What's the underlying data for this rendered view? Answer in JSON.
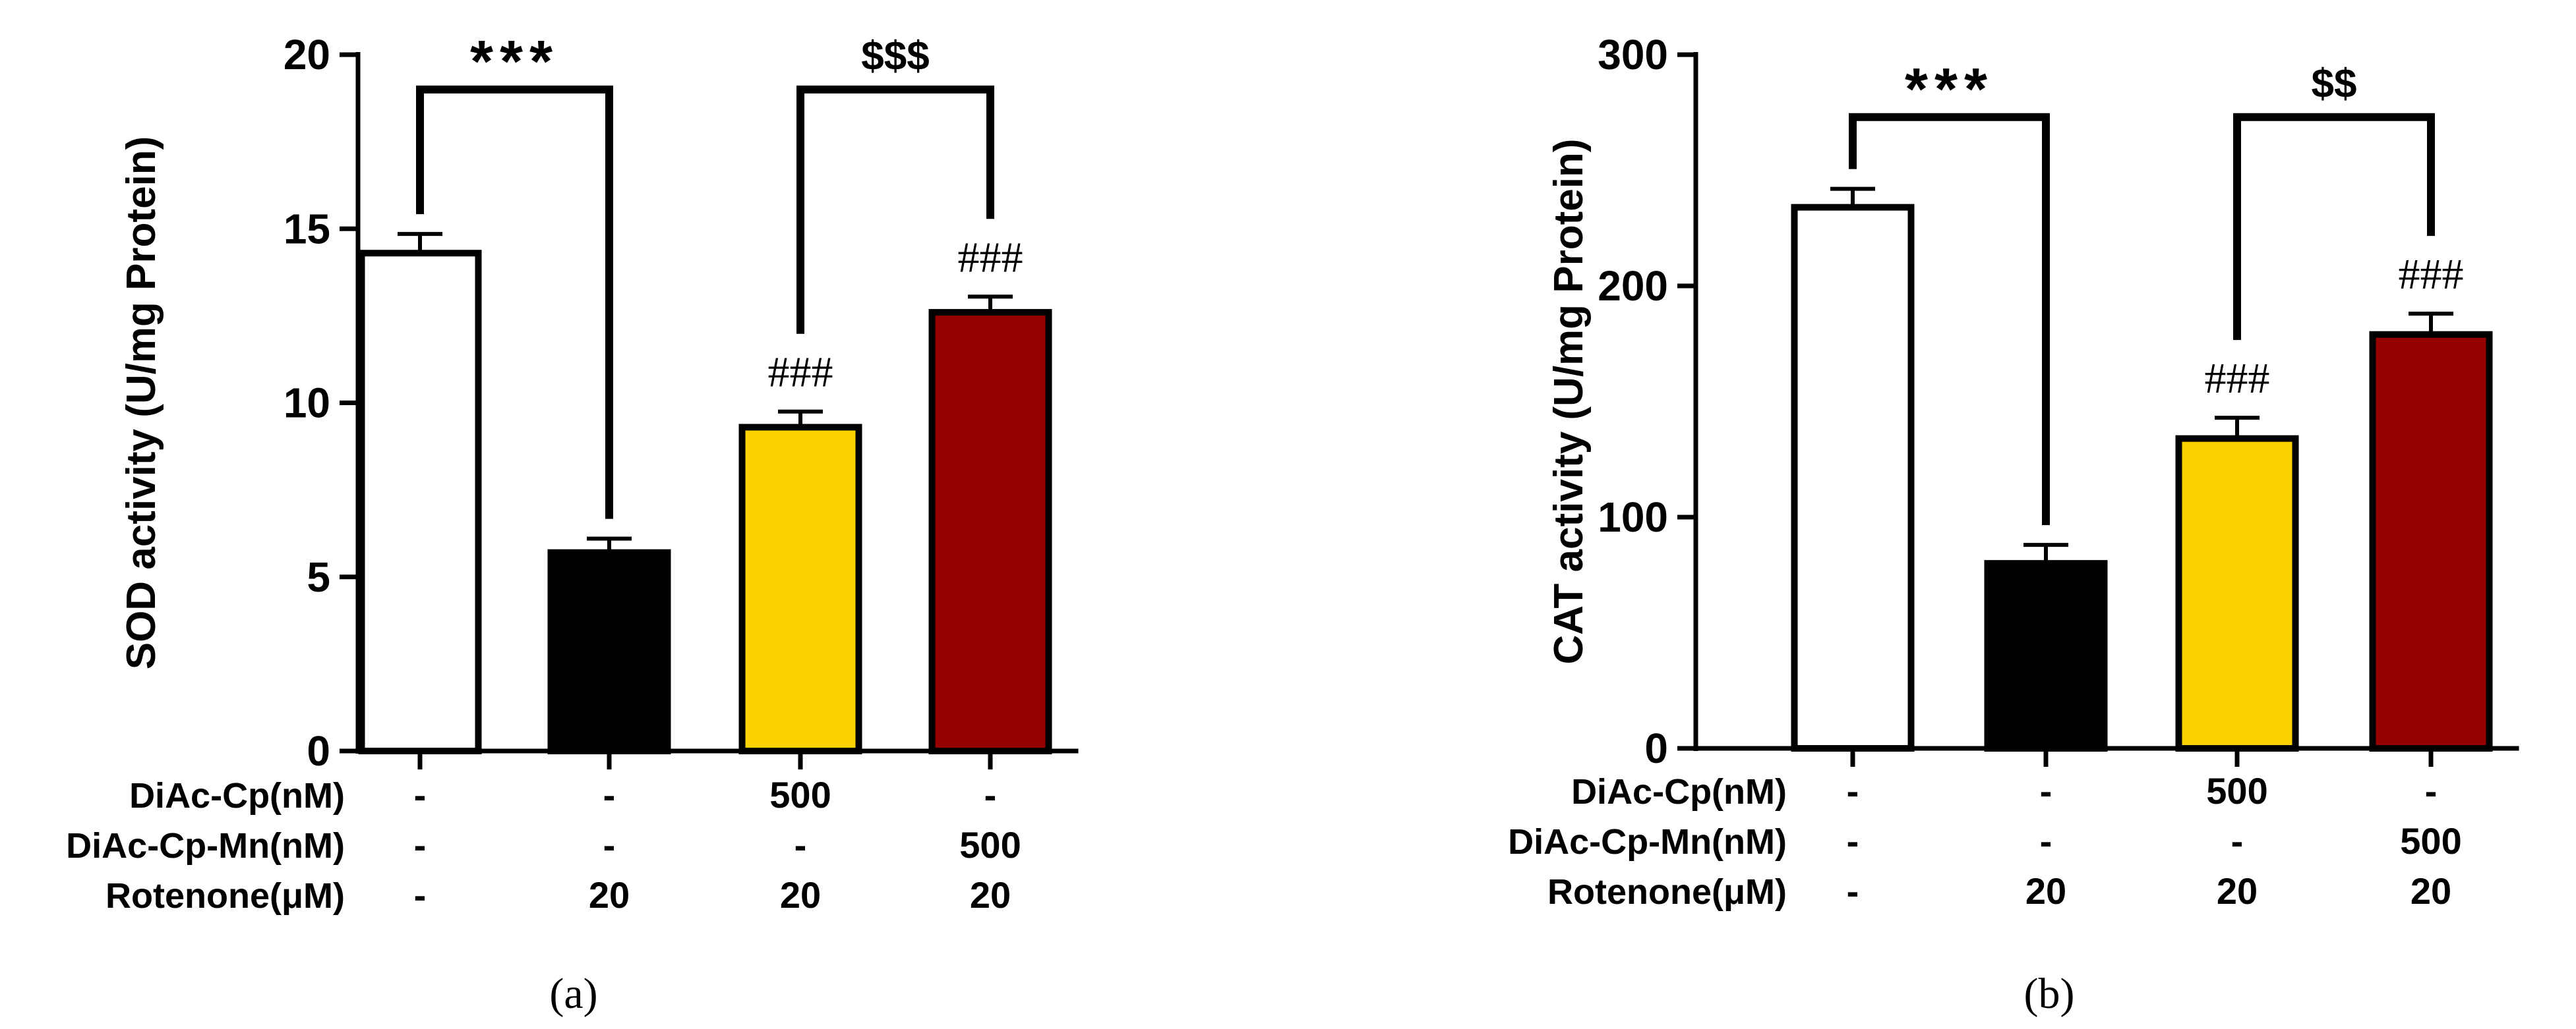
{
  "panels": [
    {
      "caption": "(a)"
    },
    {
      "caption": "(b)"
    }
  ],
  "row_labels": [
    "DiAc-Cp(nM)",
    "DiAc-Cp-Mn(nM)",
    "Rotenone(μM)"
  ],
  "chart_data": [
    {
      "type": "bar",
      "title": "",
      "xlabel": "",
      "ylabel": "SOD activity (U/mg Protein)",
      "ylim": [
        0,
        20
      ],
      "yticks": [
        0,
        5,
        10,
        15,
        20
      ],
      "values": [
        14.3,
        5.7,
        9.3,
        12.6
      ],
      "errors": [
        0.55,
        0.4,
        0.45,
        0.45
      ],
      "colors": [
        "#ffffff",
        "#000000",
        "#fed200",
        "#960000"
      ],
      "conditions": [
        [
          "-",
          "-",
          "500",
          "-"
        ],
        [
          "-",
          "-",
          "-",
          "500"
        ],
        [
          "-",
          "20",
          "20",
          "20"
        ]
      ],
      "bar_labels": [
        "",
        "",
        "###",
        "###"
      ],
      "comparisons": [
        {
          "from": 0,
          "to": 1,
          "label": "***",
          "level": 19
        },
        {
          "from": 2,
          "to": 3,
          "label": "$$$",
          "level": 19
        }
      ]
    },
    {
      "type": "bar",
      "title": "",
      "xlabel": "",
      "ylabel": "CAT activity (U/mg Protein)",
      "ylim": [
        0,
        300
      ],
      "yticks": [
        0,
        100,
        200,
        300
      ],
      "values": [
        234,
        80,
        134,
        179
      ],
      "errors": [
        8,
        8,
        9,
        9
      ],
      "colors": [
        "#ffffff",
        "#000000",
        "#fed200",
        "#960000"
      ],
      "conditions": [
        [
          "-",
          "-",
          "500",
          "-"
        ],
        [
          "-",
          "-",
          "-",
          "500"
        ],
        [
          "-",
          "20",
          "20",
          "20"
        ]
      ],
      "bar_labels": [
        "",
        "",
        "###",
        "###"
      ],
      "comparisons": [
        {
          "from": 0,
          "to": 1,
          "label": "***",
          "level": 273
        },
        {
          "from": 2,
          "to": 3,
          "label": "$$",
          "level": 273
        }
      ]
    }
  ]
}
